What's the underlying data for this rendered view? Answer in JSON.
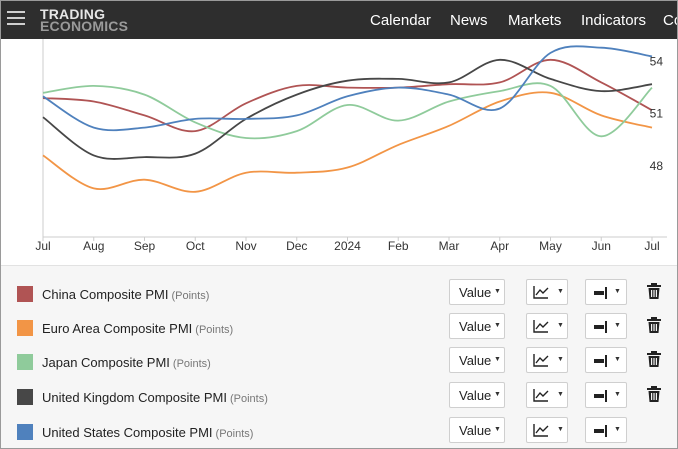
{
  "header": {
    "logo_line1": "TRADING",
    "logo_line2": "ECONOMICS",
    "nav": [
      "Calendar",
      "News",
      "Markets",
      "Indicators",
      "Co"
    ]
  },
  "chart_data": {
    "type": "line",
    "x": [
      "2023-07",
      "2023-08",
      "2023-09",
      "2023-10",
      "2023-11",
      "2023-12",
      "2024-01",
      "2024-02",
      "2024-03",
      "2024-04",
      "2024-05",
      "2024-06",
      "2024-07"
    ],
    "x_tick_labels": [
      "Jul",
      "Aug",
      "Sep",
      "Oct",
      "Nov",
      "Dec",
      "2024",
      "Feb",
      "Mar",
      "Apr",
      "May",
      "Jun",
      "Jul"
    ],
    "y_tick_labels": [
      "54",
      "51",
      "48"
    ],
    "y_ticks": [
      54,
      51,
      48
    ],
    "ylim": [
      43.9,
      55.3
    ],
    "y_axis_position": "right",
    "grid": false,
    "series": [
      {
        "name": "China Composite PMI",
        "color": "#b05454",
        "values": [
          51.9,
          51.7,
          50.9,
          50.0,
          51.6,
          52.6,
          52.5,
          52.5,
          52.7,
          52.8,
          54.1,
          52.8,
          51.2
        ]
      },
      {
        "name": "Euro Area Composite PMI",
        "color": "#f29546",
        "values": [
          48.6,
          46.7,
          47.2,
          46.5,
          47.6,
          47.6,
          47.9,
          49.2,
          50.3,
          51.7,
          52.2,
          50.9,
          50.2
        ]
      },
      {
        "name": "Japan Composite PMI",
        "color": "#8fcb9b",
        "values": [
          52.2,
          52.6,
          52.1,
          50.5,
          49.6,
          50.0,
          51.5,
          50.6,
          51.7,
          52.3,
          52.6,
          49.7,
          52.5
        ]
      },
      {
        "name": "United Kingdom Composite PMI",
        "color": "#474747",
        "values": [
          50.8,
          48.6,
          48.5,
          48.7,
          50.7,
          52.1,
          52.9,
          53.0,
          52.8,
          54.1,
          53.0,
          52.3,
          52.7
        ]
      },
      {
        "name": "United States Composite PMI",
        "color": "#4f81bd",
        "values": [
          52.0,
          50.2,
          50.2,
          50.7,
          50.7,
          50.9,
          52.0,
          52.5,
          52.1,
          51.3,
          54.5,
          54.8,
          54.3
        ]
      }
    ]
  },
  "legend": {
    "unit": "(Points)",
    "value_label": "Value",
    "items": [
      {
        "name": "China Composite PMI",
        "color": "#b05454",
        "deletable": true
      },
      {
        "name": "Euro Area Composite PMI",
        "color": "#f29546",
        "deletable": true
      },
      {
        "name": "Japan Composite PMI",
        "color": "#8fcb9b",
        "deletable": true
      },
      {
        "name": "United Kingdom Composite PMI",
        "color": "#474747",
        "deletable": true
      },
      {
        "name": "United States Composite PMI",
        "color": "#4f81bd",
        "deletable": false
      }
    ]
  }
}
